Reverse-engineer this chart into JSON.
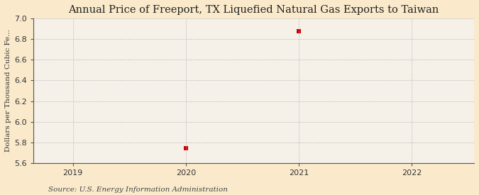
{
  "title": "Annual Price of Freeport, TX Liquefied Natural Gas Exports to Taiwan",
  "ylabel": "Dollars per Thousand Cubic Fe...",
  "source": "Source: U.S. Energy Information Administration",
  "x_data": [
    2020,
    2021
  ],
  "y_data": [
    5.74,
    6.88
  ],
  "xlim": [
    2018.65,
    2022.55
  ],
  "ylim": [
    5.6,
    7.0
  ],
  "yticks": [
    5.6,
    5.8,
    6.0,
    6.2,
    6.4,
    6.6,
    6.8,
    7.0
  ],
  "xticks": [
    2019,
    2020,
    2021,
    2022
  ],
  "marker_color": "#cc0000",
  "marker": "s",
  "marker_size": 4,
  "bg_color": "#faeacb",
  "plot_bg_color": "#f5f0e8",
  "grid_color": "#aaaaaa",
  "title_fontsize": 10.5,
  "label_fontsize": 7.5,
  "tick_fontsize": 8,
  "source_fontsize": 7.5
}
